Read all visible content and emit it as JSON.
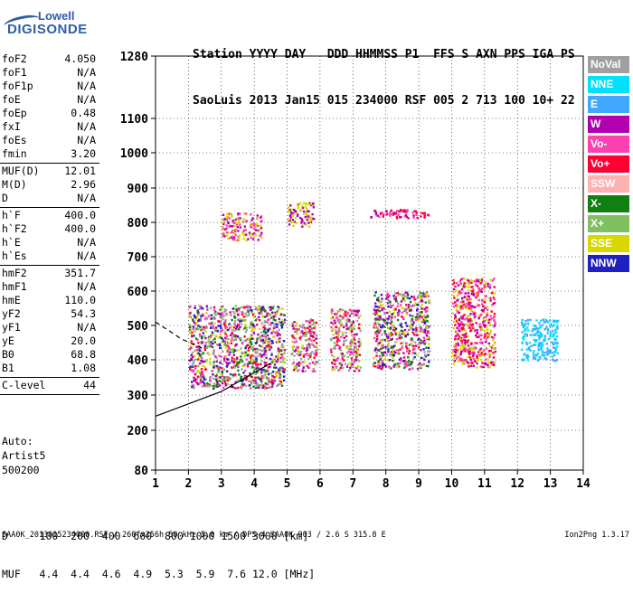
{
  "logo": {
    "line1": "Lowell",
    "line2": "DIGISONDE"
  },
  "header": {
    "labels": "Station YYYY DAY   DDD HHMMSS P1  FFS S AXN PPS IGA PS",
    "values": "SaoLuis 2013 Jan15 015 234000 RSF 005 2 713 100 10+ 22"
  },
  "params": [
    {
      "name": "foF2",
      "value": "4.050"
    },
    {
      "name": "foF1",
      "value": "N/A"
    },
    {
      "name": "foF1p",
      "value": "N/A"
    },
    {
      "name": "foE",
      "value": "N/A"
    },
    {
      "name": "foEp",
      "value": "0.48"
    },
    {
      "name": "fxI",
      "value": "N/A"
    },
    {
      "name": "foEs",
      "value": "N/A"
    },
    {
      "name": "fmin",
      "value": "3.20"
    },
    {
      "name": "MUF(D)",
      "value": "12.01",
      "sep": true
    },
    {
      "name": "M(D)",
      "value": "2.96"
    },
    {
      "name": "D",
      "value": "N/A"
    },
    {
      "name": "h`F",
      "value": "400.0",
      "sep": true
    },
    {
      "name": "h`F2",
      "value": "400.0"
    },
    {
      "name": "h`E",
      "value": "N/A"
    },
    {
      "name": "h`Es",
      "value": "N/A"
    },
    {
      "name": "hmF2",
      "value": "351.7",
      "sep": true
    },
    {
      "name": "hmF1",
      "value": "N/A"
    },
    {
      "name": "hmE",
      "value": "110.0"
    },
    {
      "name": "yF2",
      "value": "54.3"
    },
    {
      "name": "yF1",
      "value": "N/A"
    },
    {
      "name": "yE",
      "value": "20.0"
    },
    {
      "name": "B0",
      "value": "68.8"
    },
    {
      "name": "B1",
      "value": "1.08"
    },
    {
      "name": "C-level",
      "value": "44",
      "sep": true
    }
  ],
  "auto": [
    "Auto:",
    "Artist5",
    "500200"
  ],
  "legend": [
    {
      "label": "NoVal",
      "color": "#a0a0a0"
    },
    {
      "label": "NNE",
      "color": "#00e0ff"
    },
    {
      "label": "E",
      "color": "#40a8ff"
    },
    {
      "label": "W",
      "color": "#b000b0"
    },
    {
      "label": "Vo-",
      "color": "#ff40b0"
    },
    {
      "label": "Vo+",
      "color": "#ff0030"
    },
    {
      "label": "SSW",
      "color": "#ffb0b0"
    },
    {
      "label": "X-",
      "color": "#108010"
    },
    {
      "label": "X+",
      "color": "#80c060"
    },
    {
      "label": "SSE",
      "color": "#d8d800"
    },
    {
      "label": "NNW",
      "color": "#2020c0"
    }
  ],
  "muf_table": {
    "d_line": "D     100  200  400  600  800 1000 1500 3000 [km]",
    "muf_line": "MUF   4.4  4.4  4.6  4.9  5.3  5.9  7.6 12.0 [MHz]"
  },
  "footer": "SAA0K_2013015234000.RSF / 260fx256h 50 kHz 5.0 km / DPS-4 SAA0K 903 / 2.6 S 315.8 E",
  "version": "Ion2Png 1.3.17",
  "chart_data": {
    "type": "scatter",
    "xlabel": "",
    "ylabel": "",
    "xlim": [
      1,
      14
    ],
    "ylim": [
      80,
      1280
    ],
    "x_ticks": [
      1,
      2,
      3,
      4,
      5,
      6,
      7,
      8,
      9,
      10,
      11,
      12,
      13,
      14
    ],
    "y_ticks": [
      80,
      200,
      300,
      400,
      500,
      600,
      700,
      800,
      900,
      1000,
      1100,
      1280
    ],
    "grid": true,
    "clusters": [
      {
        "x": [
          2.0,
          4.9
        ],
        "y": [
          320,
          560
        ],
        "colors": [
          "#b000b0",
          "#ff40b0",
          "#ff0030",
          "#d8d800",
          "#108010",
          "#80c060",
          "#2020c0",
          "#a0a0a0"
        ]
      },
      {
        "x": [
          5.1,
          5.9
        ],
        "y": [
          370,
          520
        ],
        "colors": [
          "#b000b0",
          "#ff40b0",
          "#d8d800",
          "#ff0030",
          "#80c060",
          "#a0a0a0"
        ]
      },
      {
        "x": [
          6.3,
          7.2
        ],
        "y": [
          370,
          550
        ],
        "colors": [
          "#d8d800",
          "#b000b0",
          "#ff40b0",
          "#ff0030",
          "#80c060",
          "#a0a0a0"
        ]
      },
      {
        "x": [
          7.6,
          9.3
        ],
        "y": [
          375,
          600
        ],
        "colors": [
          "#b000b0",
          "#d8d800",
          "#ff40b0",
          "#ff0030",
          "#2020c0",
          "#108010",
          "#a0a0a0"
        ]
      },
      {
        "x": [
          10.0,
          11.3
        ],
        "y": [
          380,
          640
        ],
        "colors": [
          "#b000b0",
          "#ff40b0",
          "#d8d800",
          "#ff0030"
        ]
      },
      {
        "x": [
          12.1,
          13.2
        ],
        "y": [
          400,
          520
        ],
        "colors": [
          "#00e0ff",
          "#40a8ff"
        ]
      },
      {
        "x": [
          3.0,
          4.2
        ],
        "y": [
          750,
          830
        ],
        "colors": [
          "#d8d800",
          "#b000b0",
          "#ff40b0"
        ]
      },
      {
        "x": [
          5.0,
          5.8
        ],
        "y": [
          790,
          860
        ],
        "colors": [
          "#d8d800",
          "#b000b0"
        ]
      },
      {
        "x": [
          7.5,
          9.3
        ],
        "y": [
          815,
          840
        ],
        "colors": [
          "#b000b0",
          "#ff40b0",
          "#ff0030"
        ]
      }
    ],
    "curves": [
      {
        "name": "",
        "style": "solid",
        "x": [
          1,
          3,
          4.5
        ],
        "y": [
          240,
          310,
          390
        ]
      },
      {
        "name": "",
        "style": "dashed",
        "x": [
          1,
          1.8,
          2.5
        ],
        "y": [
          510,
          460,
          430
        ]
      }
    ]
  }
}
